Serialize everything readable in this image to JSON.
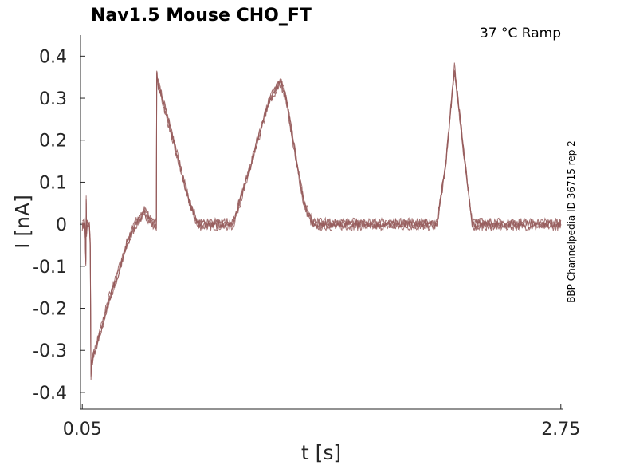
{
  "chart_data": {
    "type": "line",
    "title": "Nav1.5  Mouse  CHO_FT",
    "subtitle": "37 °C  Ramp",
    "xlabel": "t [s]",
    "ylabel": "I [nA]",
    "side_note": "BBP Channelpedia ID 36715 rep 2",
    "xlim": [
      0.05,
      2.75
    ],
    "ylim": [
      -0.44,
      0.45
    ],
    "x_ticks": [
      {
        "value": 0.05,
        "label": "0.05"
      },
      {
        "value": 2.75,
        "label": "2.75"
      }
    ],
    "y_ticks": [
      {
        "value": 0.4,
        "label": "0.4"
      },
      {
        "value": 0.3,
        "label": "0.3"
      },
      {
        "value": 0.2,
        "label": "0.2"
      },
      {
        "value": 0.1,
        "label": "0.1"
      },
      {
        "value": 0.0,
        "label": "0"
      },
      {
        "value": -0.1,
        "label": "-0.1"
      },
      {
        "value": -0.2,
        "label": "-0.2"
      },
      {
        "value": -0.3,
        "label": "-0.3"
      },
      {
        "value": -0.4,
        "label": "-0.4"
      }
    ],
    "grid": false,
    "color": "#955a5a",
    "series": [
      {
        "x": [
          0.05,
          0.065,
          0.07,
          0.072,
          0.074,
          0.078,
          0.082,
          0.09,
          0.095,
          0.099,
          0.102,
          0.104,
          0.106,
          0.108,
          0.15,
          0.2,
          0.25,
          0.3,
          0.35,
          0.4,
          0.45,
          0.468,
          0.47,
          0.472,
          0.475,
          0.5,
          0.55,
          0.6,
          0.65,
          0.7,
          0.75,
          0.8,
          0.83,
          0.9,
          1.0,
          1.1,
          1.17,
          1.2,
          1.25,
          1.3,
          1.35,
          1.4,
          1.425,
          1.45,
          1.5,
          1.55,
          1.6,
          1.65,
          1.7,
          1.75,
          1.8,
          1.85,
          1.9,
          1.95,
          2.0,
          2.05,
          2.1,
          2.15,
          2.2,
          2.25,
          2.3,
          2.31,
          2.33,
          2.35,
          2.36,
          2.37,
          2.38,
          2.4,
          2.41,
          2.43,
          2.5,
          2.55,
          2.6,
          2.65,
          2.7,
          2.75
        ],
        "y": [
          0.0,
          0.0,
          -0.09,
          0.06,
          -0.02,
          0.0,
          0.0,
          0.0,
          -0.05,
          -0.36,
          -0.33,
          -0.33,
          -0.32,
          -0.32,
          -0.26,
          -0.18,
          -0.12,
          -0.05,
          0.0,
          0.03,
          0.0,
          0.0,
          0.36,
          0.35,
          0.34,
          0.3,
          0.22,
          0.14,
          0.06,
          0.0,
          0.0,
          0.0,
          0.0,
          0.0,
          0.14,
          0.29,
          0.34,
          0.3,
          0.17,
          0.05,
          0.0,
          0.0,
          0.0,
          0.0,
          0.0,
          0.0,
          0.0,
          0.0,
          0.0,
          0.0,
          0.0,
          0.0,
          0.0,
          0.0,
          0.0,
          0.0,
          0.14,
          0.37,
          0.18,
          0.0,
          0.0,
          0.0,
          0.0,
          0.0,
          0.0,
          0.0,
          0.0,
          0.0,
          0.0,
          0.0,
          0.0,
          0.0,
          0.0,
          0.0,
          0.0,
          0.0
        ]
      }
    ]
  }
}
